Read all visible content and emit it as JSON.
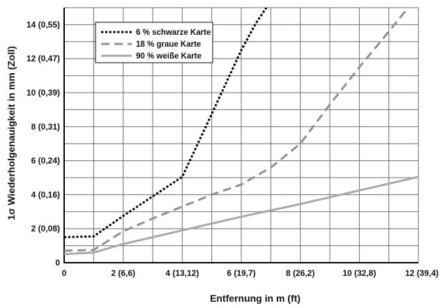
{
  "chart_data": {
    "type": "line",
    "title": "",
    "xlabel": "Entfernung in m (ft)",
    "ylabel": "1σ Wiederholgenauigkeit in mm (Zoll)",
    "xlim": [
      0,
      12
    ],
    "ylim": [
      0,
      15
    ],
    "x_ticks": [
      {
        "value": 0,
        "label": "0"
      },
      {
        "value": 2,
        "label": "2 (6,6)"
      },
      {
        "value": 4,
        "label": "4 (13,12)"
      },
      {
        "value": 6,
        "label": "6 (19,7)"
      },
      {
        "value": 8,
        "label": "8 (26,2)"
      },
      {
        "value": 10,
        "label": "10 (32,8)"
      },
      {
        "value": 12,
        "label": "12 (39,4)"
      }
    ],
    "y_ticks": [
      {
        "value": 0,
        "label": "0"
      },
      {
        "value": 2,
        "label": "2 (0,08)"
      },
      {
        "value": 4,
        "label": "4 (0,16)"
      },
      {
        "value": 6,
        "label": "6 (0,24)"
      },
      {
        "value": 8,
        "label": "8 (0,31)"
      },
      {
        "value": 10,
        "label": "10 (0,39)"
      },
      {
        "value": 12,
        "label": "12 (0,47)"
      },
      {
        "value": 14,
        "label": "14 (0,55)"
      }
    ],
    "grid": true,
    "x_grid_step": 1,
    "y_grid_step": 1,
    "legend_position": "top-left",
    "series": [
      {
        "name": "6 % schwarze Karte",
        "color": "#000000",
        "dash": "dotted",
        "x": [
          0,
          1,
          2,
          3,
          4,
          5,
          6,
          6.5,
          6.85
        ],
        "y": [
          1.5,
          1.55,
          2.75,
          3.9,
          5.05,
          8.75,
          12.5,
          14.1,
          15
        ]
      },
      {
        "name": "18 % graue Karte",
        "color": "#909090",
        "dash": "dashed",
        "x": [
          0,
          1,
          2,
          3,
          4,
          5,
          6,
          7,
          8,
          9,
          10,
          11,
          11.65
        ],
        "y": [
          0.7,
          0.75,
          1.85,
          2.6,
          3.3,
          4.0,
          4.6,
          5.6,
          7.0,
          9.3,
          11.5,
          13.6,
          15
        ]
      },
      {
        "name": "90 % weiße Karte",
        "color": "#a8a8a8",
        "dash": "solid",
        "x": [
          0,
          1,
          2,
          4,
          6,
          8,
          10,
          12
        ],
        "y": [
          0.5,
          0.6,
          1.1,
          1.9,
          2.7,
          3.45,
          4.25,
          5.05
        ]
      }
    ]
  }
}
